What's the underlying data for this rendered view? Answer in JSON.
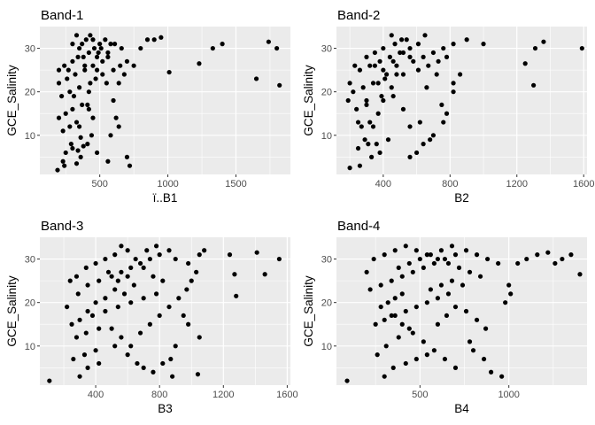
{
  "chart_data": [
    {
      "type": "scatter",
      "title": "Band-1",
      "xlabel": "ï..B1",
      "ylabel": "GCE_Salinity",
      "xlim": [
        60,
        1900
      ],
      "ylim": [
        1,
        35
      ],
      "xticks": [
        500,
        1000,
        1500
      ],
      "yticks": [
        10,
        20,
        30
      ],
      "grid": true,
      "point_color": "#000000",
      "points": [
        [
          190,
          2
        ],
        [
          240,
          3
        ],
        [
          330,
          3.5
        ],
        [
          360,
          5
        ],
        [
          250,
          6
        ],
        [
          340,
          6.5
        ],
        [
          300,
          7
        ],
        [
          380,
          7.5
        ],
        [
          410,
          8
        ],
        [
          360,
          9.5
        ],
        [
          230,
          11
        ],
        [
          280,
          12
        ],
        [
          330,
          13
        ],
        [
          450,
          14
        ],
        [
          200,
          14
        ],
        [
          250,
          15
        ],
        [
          300,
          16
        ],
        [
          370,
          17
        ],
        [
          410,
          17
        ],
        [
          220,
          19
        ],
        [
          280,
          20
        ],
        [
          350,
          21
        ],
        [
          430,
          22
        ],
        [
          200,
          22
        ],
        [
          260,
          23
        ],
        [
          320,
          24
        ],
        [
          390,
          25
        ],
        [
          200,
          25
        ],
        [
          240,
          26
        ],
        [
          300,
          27
        ],
        [
          340,
          28
        ],
        [
          380,
          28
        ],
        [
          420,
          29
        ],
        [
          460,
          30
        ],
        [
          500,
          31
        ],
        [
          540,
          32
        ],
        [
          580,
          31
        ],
        [
          560,
          29
        ],
        [
          480,
          28
        ],
        [
          520,
          27
        ],
        [
          350,
          30
        ],
        [
          400,
          32
        ],
        [
          300,
          31
        ],
        [
          450,
          26
        ],
        [
          520,
          24
        ],
        [
          600,
          25
        ],
        [
          650,
          26
        ],
        [
          700,
          27
        ],
        [
          750,
          26
        ],
        [
          800,
          30
        ],
        [
          850,
          32
        ],
        [
          900,
          32
        ],
        [
          950,
          32.5
        ],
        [
          1010,
          24.5
        ],
        [
          1230,
          26.5
        ],
        [
          1330,
          30
        ],
        [
          1400,
          31
        ],
        [
          1650,
          23
        ],
        [
          1740,
          31.5
        ],
        [
          1800,
          30
        ],
        [
          1820,
          21.5
        ],
        [
          620,
          14
        ],
        [
          640,
          12
        ],
        [
          580,
          10
        ],
        [
          700,
          5
        ],
        [
          720,
          3
        ],
        [
          560,
          4
        ],
        [
          480,
          6
        ],
        [
          440,
          10
        ],
        [
          420,
          16
        ],
        [
          310,
          19
        ],
        [
          270,
          25
        ],
        [
          430,
          33
        ],
        [
          490,
          29
        ],
        [
          560,
          28
        ],
        [
          610,
          31
        ],
        [
          660,
          30
        ],
        [
          470,
          23
        ],
        [
          390,
          26
        ],
        [
          330,
          33
        ],
        [
          370,
          31
        ],
        [
          450,
          32
        ],
        [
          510,
          30
        ],
        [
          480,
          25
        ],
        [
          420,
          20
        ],
        [
          350,
          12
        ],
        [
          290,
          8
        ],
        [
          230,
          4
        ],
        [
          600,
          18
        ],
        [
          550,
          22
        ],
        [
          640,
          22
        ],
        [
          680,
          24
        ]
      ]
    },
    {
      "type": "scatter",
      "title": "Band-2",
      "xlabel": "B2",
      "ylabel": "GCE_Salinity",
      "xlim": [
        120,
        1620
      ],
      "ylim": [
        1,
        35
      ],
      "xticks": [
        400,
        800,
        1200,
        1600
      ],
      "yticks": [
        10,
        20,
        30
      ],
      "grid": true,
      "point_color": "#000000",
      "points": [
        [
          200,
          2.5
        ],
        [
          260,
          3
        ],
        [
          330,
          5
        ],
        [
          380,
          6
        ],
        [
          250,
          7
        ],
        [
          310,
          8
        ],
        [
          360,
          8
        ],
        [
          430,
          9
        ],
        [
          270,
          12
        ],
        [
          320,
          13
        ],
        [
          370,
          15
        ],
        [
          240,
          16
        ],
        [
          300,
          17
        ],
        [
          400,
          18
        ],
        [
          460,
          19
        ],
        [
          220,
          20
        ],
        [
          280,
          21
        ],
        [
          340,
          22
        ],
        [
          410,
          23
        ],
        [
          480,
          24
        ],
        [
          260,
          25
        ],
        [
          320,
          26
        ],
        [
          380,
          27
        ],
        [
          440,
          28
        ],
        [
          500,
          29
        ],
        [
          560,
          30
        ],
        [
          610,
          31
        ],
        [
          650,
          33
        ],
        [
          540,
          32
        ],
        [
          470,
          31
        ],
        [
          400,
          30
        ],
        [
          350,
          29
        ],
        [
          300,
          28
        ],
        [
          230,
          26
        ],
        [
          200,
          22
        ],
        [
          190,
          18
        ],
        [
          580,
          27
        ],
        [
          640,
          28
        ],
        [
          700,
          29
        ],
        [
          760,
          30
        ],
        [
          820,
          31
        ],
        [
          900,
          32
        ],
        [
          1000,
          31
        ],
        [
          1250,
          26.5
        ],
        [
          1310,
          30
        ],
        [
          1360,
          31.5
        ],
        [
          1590,
          30
        ],
        [
          1300,
          21.5
        ],
        [
          820,
          20
        ],
        [
          780,
          15
        ],
        [
          760,
          13
        ],
        [
          700,
          10
        ],
        [
          640,
          8
        ],
        [
          600,
          6
        ],
        [
          560,
          5
        ],
        [
          680,
          9
        ],
        [
          750,
          17
        ],
        [
          820,
          22
        ],
        [
          720,
          24
        ],
        [
          660,
          21
        ],
        [
          520,
          24
        ],
        [
          450,
          21
        ],
        [
          390,
          19
        ],
        [
          340,
          12
        ],
        [
          290,
          9
        ],
        [
          450,
          33
        ],
        [
          510,
          32
        ],
        [
          560,
          28
        ],
        [
          610,
          25
        ],
        [
          480,
          26
        ],
        [
          420,
          24
        ],
        [
          370,
          22
        ],
        [
          300,
          18
        ],
        [
          250,
          13
        ],
        [
          520,
          16
        ],
        [
          560,
          12
        ],
        [
          620,
          13
        ],
        [
          670,
          26
        ],
        [
          730,
          27
        ],
        [
          780,
          28
        ],
        [
          860,
          24
        ],
        [
          520,
          29
        ],
        [
          460,
          27
        ],
        [
          400,
          25
        ],
        [
          350,
          26
        ]
      ]
    },
    {
      "type": "scatter",
      "title": "Band-3",
      "xlabel": "B3",
      "ylabel": "GCE_Salinity",
      "xlim": [
        50,
        1620
      ],
      "ylim": [
        1,
        35
      ],
      "xticks": [
        400,
        800,
        1200,
        1600
      ],
      "yticks": [
        10,
        20,
        30
      ],
      "grid": true,
      "point_color": "#000000",
      "points": [
        [
          110,
          2
        ],
        [
          300,
          3
        ],
        [
          350,
          5
        ],
        [
          420,
          6
        ],
        [
          260,
          7
        ],
        [
          330,
          8
        ],
        [
          400,
          9
        ],
        [
          520,
          10
        ],
        [
          600,
          8
        ],
        [
          660,
          6
        ],
        [
          700,
          5
        ],
        [
          280,
          12
        ],
        [
          340,
          13
        ],
        [
          420,
          14
        ],
        [
          250,
          15
        ],
        [
          300,
          16
        ],
        [
          380,
          17
        ],
        [
          460,
          18
        ],
        [
          540,
          19
        ],
        [
          620,
          20
        ],
        [
          700,
          21
        ],
        [
          780,
          22
        ],
        [
          220,
          19
        ],
        [
          290,
          22
        ],
        [
          350,
          24
        ],
        [
          420,
          25
        ],
        [
          500,
          26
        ],
        [
          560,
          27
        ],
        [
          620,
          28
        ],
        [
          680,
          29
        ],
        [
          740,
          30
        ],
        [
          800,
          31
        ],
        [
          860,
          32
        ],
        [
          520,
          31
        ],
        [
          460,
          30
        ],
        [
          400,
          29
        ],
        [
          340,
          28
        ],
        [
          280,
          26
        ],
        [
          240,
          25
        ],
        [
          900,
          30
        ],
        [
          980,
          29
        ],
        [
          1050,
          31
        ],
        [
          1080,
          32
        ],
        [
          1240,
          31
        ],
        [
          1270,
          26.5
        ],
        [
          1280,
          21.5
        ],
        [
          1410,
          31.5
        ],
        [
          1460,
          26.5
        ],
        [
          1550,
          30
        ],
        [
          1050,
          12
        ],
        [
          980,
          15
        ],
        [
          950,
          17
        ],
        [
          900,
          10
        ],
        [
          870,
          7
        ],
        [
          820,
          6
        ],
        [
          760,
          4
        ],
        [
          1040,
          3.5
        ],
        [
          880,
          3
        ],
        [
          560,
          33
        ],
        [
          600,
          32
        ],
        [
          650,
          30
        ],
        [
          700,
          28
        ],
        [
          760,
          26
        ],
        [
          820,
          25
        ],
        [
          640,
          24
        ],
        [
          580,
          22
        ],
        [
          520,
          23
        ],
        [
          460,
          21
        ],
        [
          400,
          20
        ],
        [
          350,
          18
        ],
        [
          500,
          14
        ],
        [
          560,
          12
        ],
        [
          620,
          10
        ],
        [
          680,
          13
        ],
        [
          740,
          15
        ],
        [
          800,
          17
        ],
        [
          860,
          19
        ],
        [
          920,
          21
        ],
        [
          970,
          23
        ],
        [
          1000,
          25
        ],
        [
          1030,
          27
        ],
        [
          720,
          32
        ],
        [
          780,
          33
        ],
        [
          600,
          26
        ],
        [
          540,
          25
        ],
        [
          480,
          27
        ]
      ]
    },
    {
      "type": "scatter",
      "title": "Band-4",
      "xlabel": "B4",
      "ylabel": "GCE_Salinity",
      "xlim": [
        30,
        1440
      ],
      "ylim": [
        1,
        35
      ],
      "xticks": [
        500,
        1000
      ],
      "yticks": [
        10,
        20,
        30
      ],
      "grid": true,
      "point_color": "#000000",
      "points": [
        [
          90,
          2
        ],
        [
          300,
          3
        ],
        [
          350,
          5
        ],
        [
          420,
          6
        ],
        [
          480,
          7
        ],
        [
          540,
          8
        ],
        [
          260,
          8
        ],
        [
          310,
          10
        ],
        [
          380,
          12
        ],
        [
          440,
          14
        ],
        [
          250,
          15
        ],
        [
          300,
          16
        ],
        [
          360,
          17
        ],
        [
          420,
          18
        ],
        [
          480,
          19
        ],
        [
          540,
          20
        ],
        [
          600,
          21
        ],
        [
          660,
          22
        ],
        [
          220,
          23
        ],
        [
          280,
          24
        ],
        [
          340,
          25
        ],
        [
          400,
          26
        ],
        [
          460,
          27
        ],
        [
          520,
          28
        ],
        [
          580,
          29
        ],
        [
          640,
          30
        ],
        [
          700,
          31
        ],
        [
          760,
          32
        ],
        [
          820,
          31
        ],
        [
          880,
          30
        ],
        [
          940,
          29
        ],
        [
          200,
          27
        ],
        [
          240,
          30
        ],
        [
          300,
          31
        ],
        [
          360,
          32
        ],
        [
          420,
          33
        ],
        [
          480,
          32
        ],
        [
          540,
          31
        ],
        [
          600,
          30
        ],
        [
          660,
          29
        ],
        [
          720,
          28
        ],
        [
          780,
          27
        ],
        [
          840,
          26
        ],
        [
          1000,
          24
        ],
        [
          1010,
          22
        ],
        [
          980,
          20
        ],
        [
          1050,
          29
        ],
        [
          1100,
          30
        ],
        [
          1160,
          31
        ],
        [
          1220,
          31.5
        ],
        [
          1260,
          29
        ],
        [
          1300,
          30
        ],
        [
          1350,
          31
        ],
        [
          1400,
          26.5
        ],
        [
          780,
          11
        ],
        [
          800,
          9
        ],
        [
          860,
          7
        ],
        [
          900,
          4
        ],
        [
          960,
          3
        ],
        [
          700,
          5
        ],
        [
          640,
          7
        ],
        [
          580,
          9
        ],
        [
          520,
          11
        ],
        [
          460,
          13
        ],
        [
          400,
          15
        ],
        [
          340,
          17
        ],
        [
          280,
          19
        ],
        [
          560,
          23
        ],
        [
          620,
          24
        ],
        [
          680,
          25
        ],
        [
          740,
          24
        ],
        [
          380,
          28
        ],
        [
          440,
          29
        ],
        [
          500,
          30
        ],
        [
          560,
          31
        ],
        [
          620,
          32
        ],
        [
          680,
          33
        ],
        [
          400,
          22
        ],
        [
          360,
          21
        ],
        [
          320,
          20
        ],
        [
          600,
          15
        ],
        [
          650,
          17
        ],
        [
          700,
          19
        ],
        [
          760,
          18
        ],
        [
          820,
          16
        ],
        [
          870,
          14
        ]
      ]
    }
  ]
}
